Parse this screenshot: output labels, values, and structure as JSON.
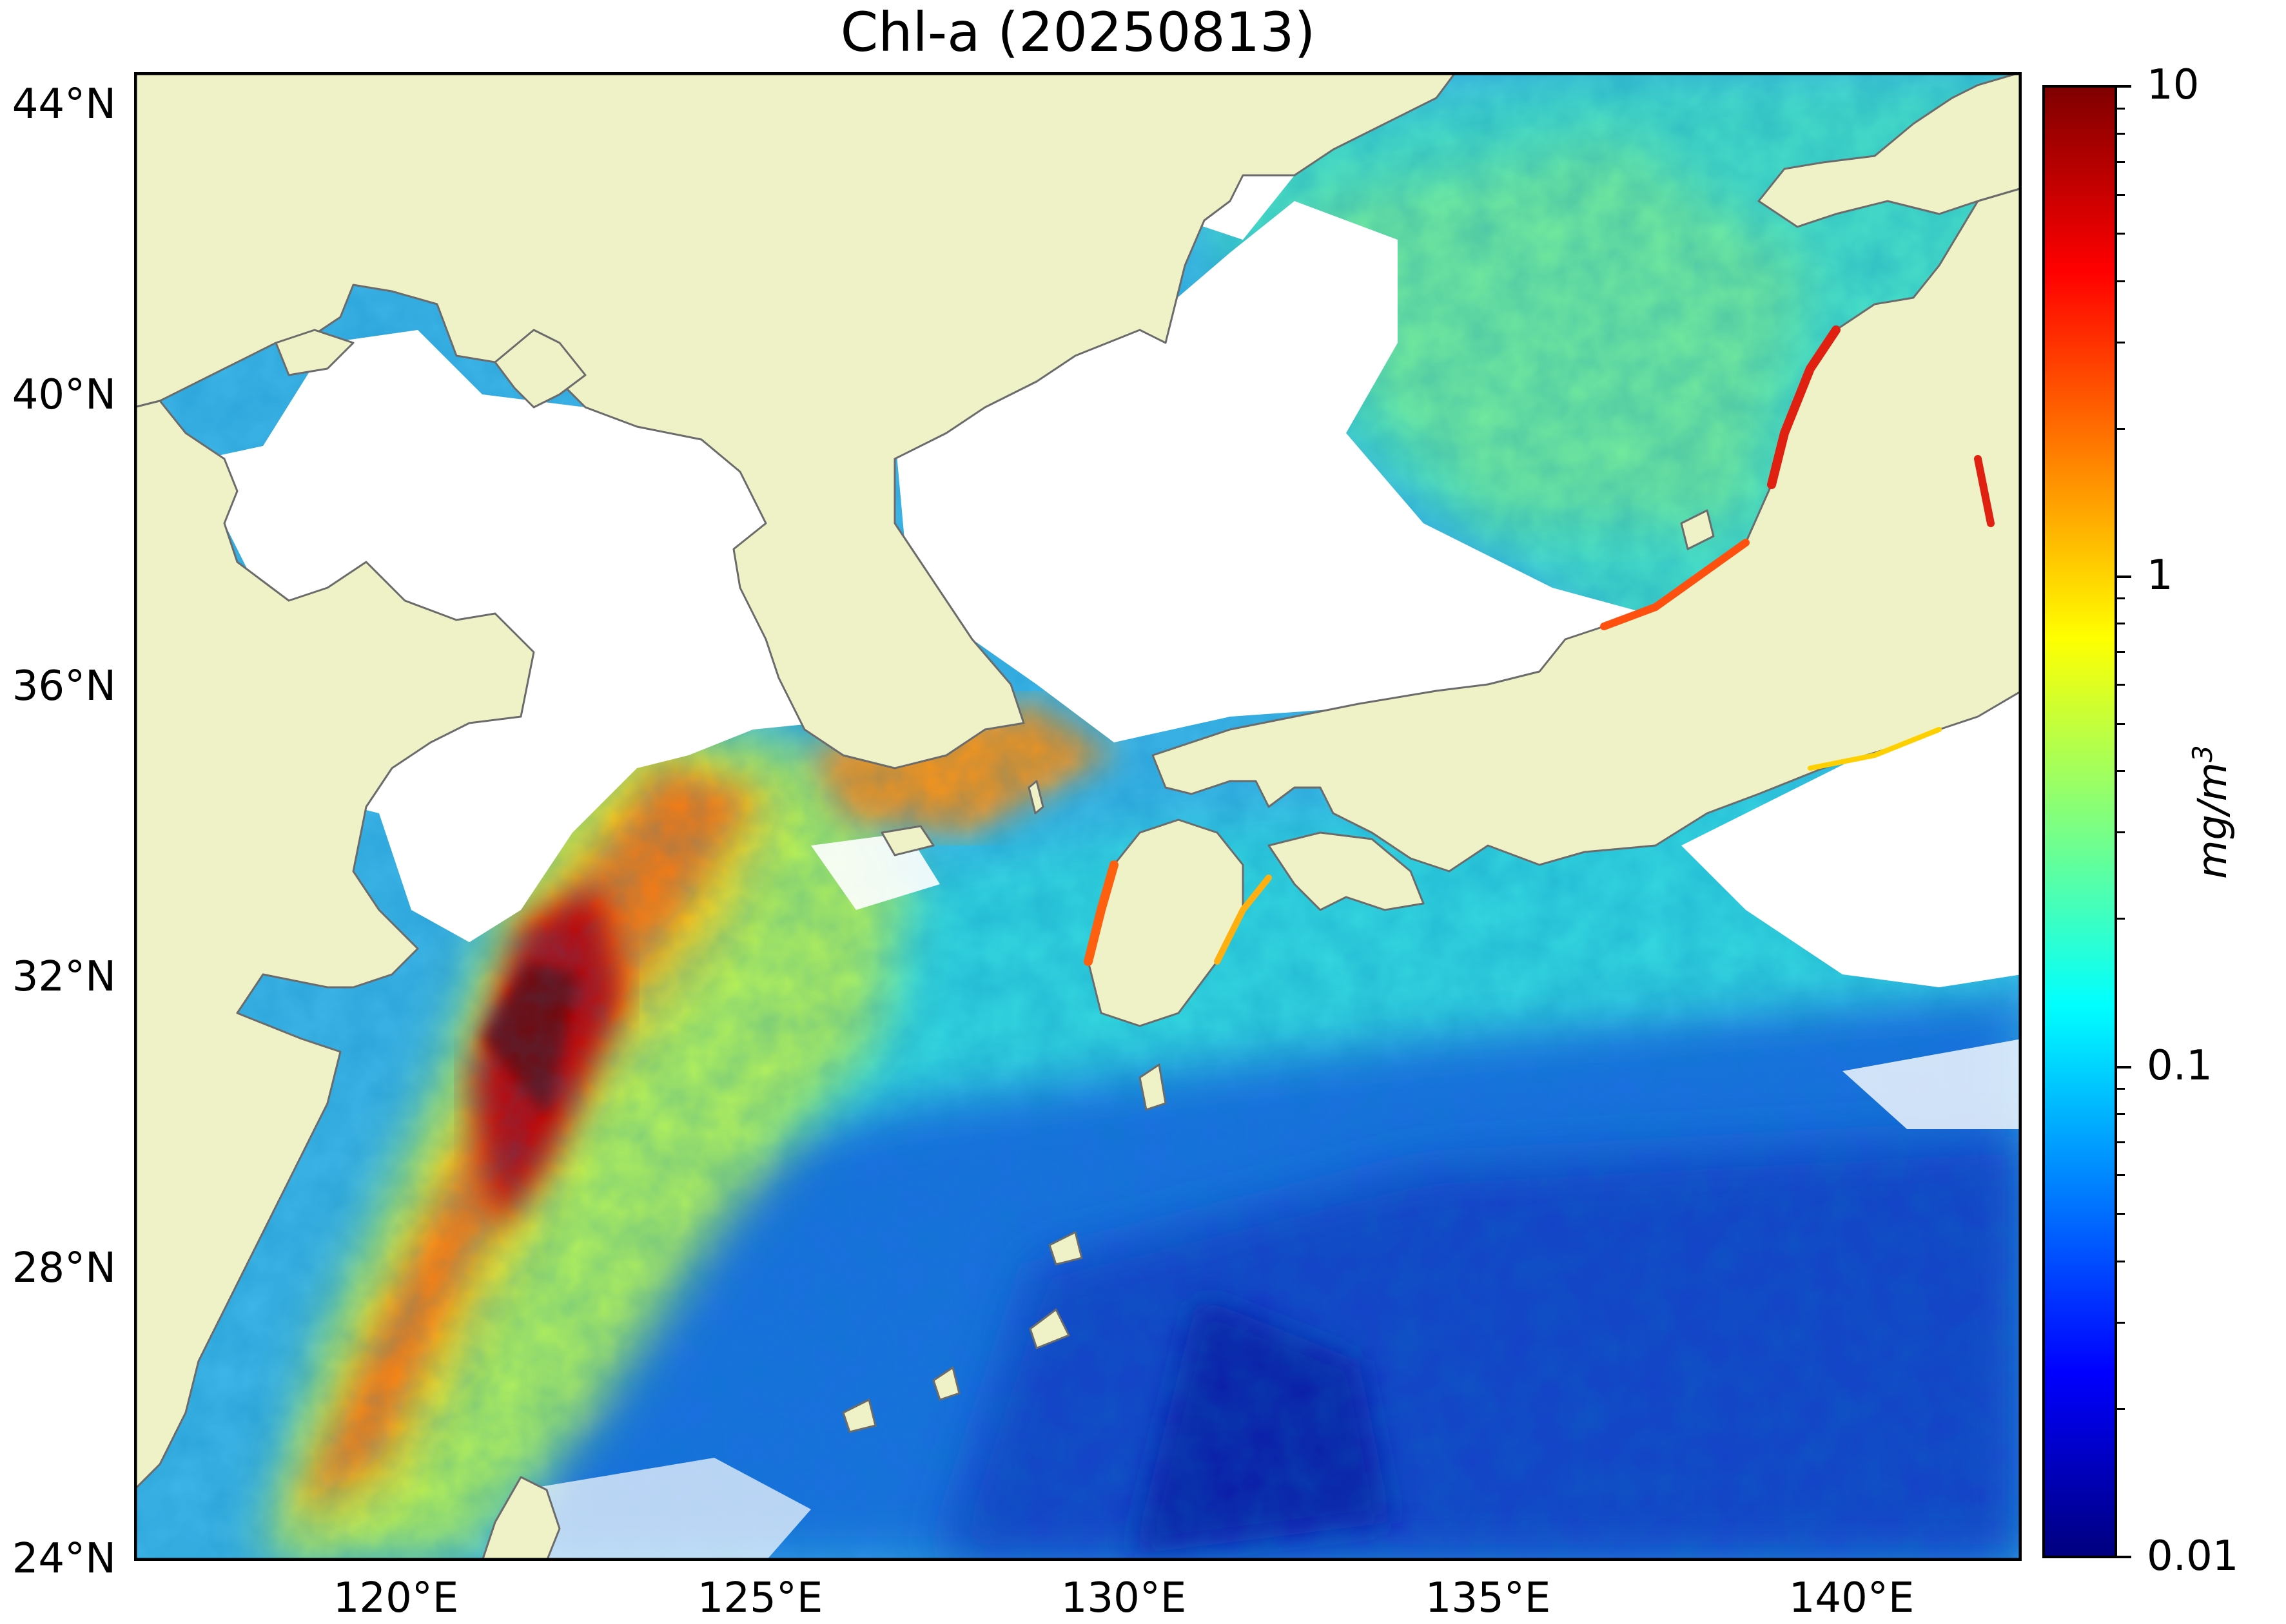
{
  "title": "Chl-a (20250813)",
  "map": {
    "lat_labels": [
      "44°N",
      "40°N",
      "36°N",
      "32°N",
      "28°N",
      "24°N"
    ],
    "lon_labels": [
      "120°E",
      "125°E",
      "130°E",
      "135°E",
      "140°E"
    ],
    "colors": {
      "land": "#eef2c6",
      "no_data": "#ffffff",
      "coastline": "#6b6b6b"
    }
  },
  "colorbar": {
    "tick_labels": [
      "10",
      "1",
      "0.1",
      "0.01"
    ],
    "unit_base": "mg/m",
    "unit_exp": "3",
    "scale": "log",
    "range": [
      0.01,
      10
    ],
    "colormap": "jet",
    "colors": [
      "#00007f",
      "#0000ff",
      "#007fff",
      "#00ffff",
      "#7fff7f",
      "#ffff00",
      "#ff7f00",
      "#ff0000",
      "#7f0000"
    ]
  }
}
